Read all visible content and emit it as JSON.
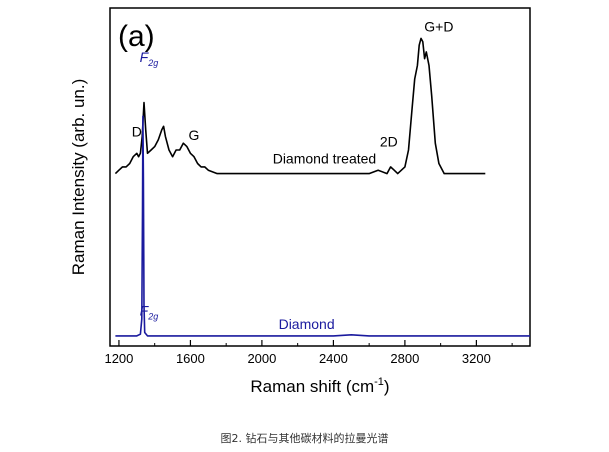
{
  "caption": "图2. 钻石与其他碳材料的拉曼光谱",
  "chart_data": {
    "type": "line",
    "panel_label": "(a)",
    "xlabel": "Raman shift (cm",
    "xlabel_sup": "-1",
    "xlabel_suffix": ")",
    "ylabel": "Raman Intensity (arb. un.)",
    "xlim": [
      1150,
      3500
    ],
    "ylim": [
      0,
      100
    ],
    "xticks": [
      1200,
      1600,
      2000,
      2400,
      2800,
      3200
    ],
    "y_ticks_shown": false,
    "grid": false,
    "series": [
      {
        "name": "Diamond treated",
        "color": "#000000",
        "points": [
          [
            1180,
            51
          ],
          [
            1200,
            52
          ],
          [
            1220,
            53
          ],
          [
            1240,
            53
          ],
          [
            1260,
            54
          ],
          [
            1280,
            56
          ],
          [
            1300,
            57
          ],
          [
            1310,
            56
          ],
          [
            1320,
            57
          ],
          [
            1330,
            62
          ],
          [
            1340,
            72
          ],
          [
            1350,
            64
          ],
          [
            1360,
            57
          ],
          [
            1380,
            58
          ],
          [
            1400,
            59
          ],
          [
            1420,
            61
          ],
          [
            1440,
            64
          ],
          [
            1450,
            65
          ],
          [
            1460,
            62
          ],
          [
            1480,
            58
          ],
          [
            1500,
            56
          ],
          [
            1520,
            58
          ],
          [
            1540,
            58
          ],
          [
            1560,
            60
          ],
          [
            1580,
            59
          ],
          [
            1600,
            57
          ],
          [
            1620,
            56
          ],
          [
            1640,
            54
          ],
          [
            1660,
            53
          ],
          [
            1680,
            53
          ],
          [
            1700,
            52
          ],
          [
            1750,
            51
          ],
          [
            1800,
            51
          ],
          [
            1900,
            51
          ],
          [
            2000,
            51
          ],
          [
            2200,
            51
          ],
          [
            2400,
            51
          ],
          [
            2600,
            51
          ],
          [
            2650,
            52
          ],
          [
            2700,
            51
          ],
          [
            2720,
            53
          ],
          [
            2740,
            52
          ],
          [
            2760,
            51
          ],
          [
            2800,
            53
          ],
          [
            2820,
            58
          ],
          [
            2840,
            70
          ],
          [
            2855,
            79
          ],
          [
            2870,
            83
          ],
          [
            2880,
            89
          ],
          [
            2890,
            91
          ],
          [
            2900,
            90
          ],
          [
            2910,
            85
          ],
          [
            2920,
            87
          ],
          [
            2935,
            83
          ],
          [
            2950,
            74
          ],
          [
            2970,
            60
          ],
          [
            2990,
            54
          ],
          [
            3020,
            51
          ],
          [
            3100,
            51
          ],
          [
            3250,
            51
          ]
        ]
      },
      {
        "name": "Diamond",
        "color": "#1a1a9e",
        "points": [
          [
            1180,
            3
          ],
          [
            1300,
            3
          ],
          [
            1320,
            3.5
          ],
          [
            1328,
            8
          ],
          [
            1332,
            40
          ],
          [
            1334,
            68
          ],
          [
            1337,
            50
          ],
          [
            1340,
            12
          ],
          [
            1344,
            4
          ],
          [
            1360,
            3
          ],
          [
            1600,
            3
          ],
          [
            2000,
            3
          ],
          [
            2400,
            3
          ],
          [
            2500,
            3.3
          ],
          [
            2600,
            3
          ],
          [
            3000,
            3
          ],
          [
            3500,
            3
          ]
        ]
      }
    ],
    "annotations": [
      {
        "text": "D",
        "x": 1300,
        "y": 62,
        "color": "#000000",
        "italic": false
      },
      {
        "text": "F",
        "sub": "2g",
        "x": 1368,
        "y": 84,
        "color": "#1a1a9e",
        "italic": true
      },
      {
        "text": "G",
        "x": 1620,
        "y": 61,
        "color": "#000000",
        "italic": false
      },
      {
        "text": "Diamond treated",
        "x": 2350,
        "y": 54,
        "color": "#000000",
        "italic": false
      },
      {
        "text": "2D",
        "x": 2710,
        "y": 59,
        "color": "#000000",
        "italic": false
      },
      {
        "text": "G+D",
        "x": 2990,
        "y": 93,
        "color": "#000000",
        "italic": false
      },
      {
        "text": "F",
        "sub": "2g",
        "x": 1368,
        "y": 9,
        "color": "#1a1a9e",
        "italic": true
      },
      {
        "text": "Diamond",
        "x": 2250,
        "y": 5,
        "color": "#1a1a9e",
        "italic": false
      }
    ]
  }
}
